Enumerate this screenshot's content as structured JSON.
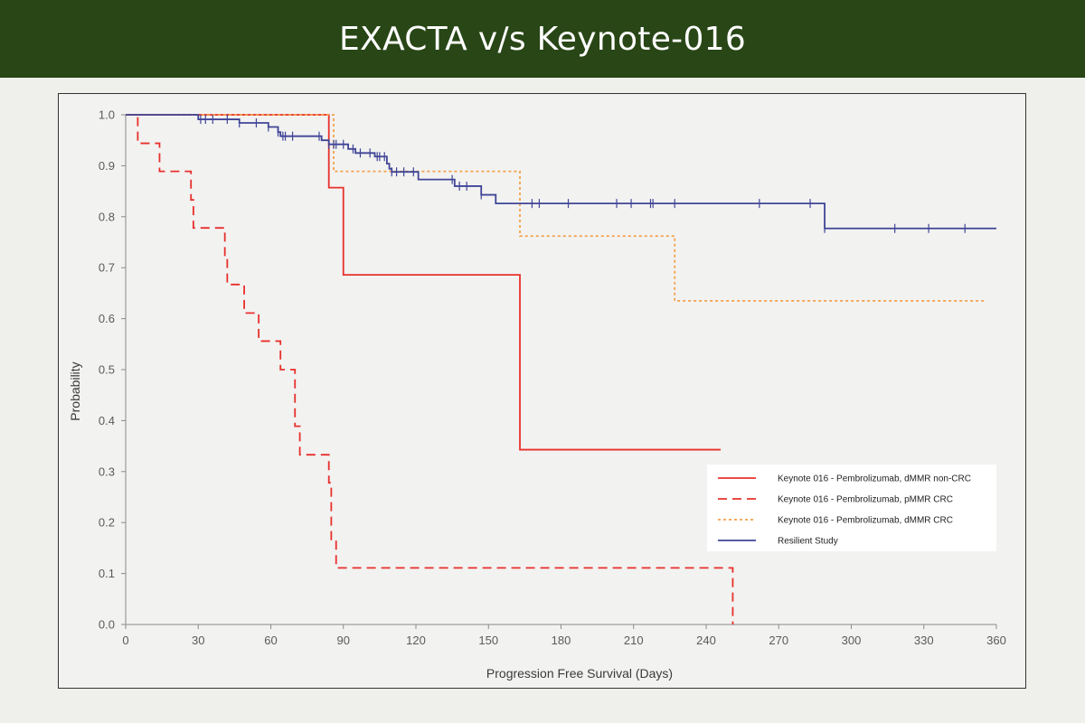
{
  "banner": {
    "title": "EXACTA v/s Keynote-016"
  },
  "colors": {
    "banner_bg": "#284616",
    "page_bg": "#eff0ec"
  },
  "chart_data": {
    "type": "line",
    "subtype": "kaplan-meier-step",
    "xlabel": "Progression Free Survival (Days)",
    "ylabel": "Probability",
    "xlim": [
      0,
      360
    ],
    "ylim": [
      0,
      1.0
    ],
    "x_ticks": [
      "0",
      "30",
      "60",
      "90",
      "120",
      "150",
      "180",
      "210",
      "240",
      "270",
      "300",
      "330",
      "360"
    ],
    "y_ticks": [
      "0.0",
      "0.1",
      "0.2",
      "0.3",
      "0.4",
      "0.5",
      "0.6",
      "0.7",
      "0.8",
      "0.9",
      "1.0"
    ],
    "grid": false,
    "legend_position": "bottom-right",
    "series": [
      {
        "name": "Keynote 016 - Pembrolizumab, dMMR non-CRC",
        "color": "#e8302b",
        "style": "solid",
        "steps": [
          [
            0,
            1.0
          ],
          [
            84,
            0.857
          ],
          [
            90,
            0.686
          ],
          [
            163,
            0.343
          ],
          [
            246,
            0.343
          ]
        ],
        "censored_x": []
      },
      {
        "name": "Keynote 016 - Pembrolizumab, pMMR CRC",
        "color": "#e8302b",
        "style": "dashed",
        "steps": [
          [
            0,
            1.0
          ],
          [
            5,
            0.944
          ],
          [
            14,
            0.889
          ],
          [
            27,
            0.833
          ],
          [
            28,
            0.778
          ],
          [
            41,
            0.722
          ],
          [
            42,
            0.667
          ],
          [
            49,
            0.611
          ],
          [
            55,
            0.556
          ],
          [
            64,
            0.5
          ],
          [
            70,
            0.389
          ],
          [
            72,
            0.333
          ],
          [
            84,
            0.278
          ],
          [
            85,
            0.167
          ],
          [
            87,
            0.111
          ],
          [
            251,
            0.0
          ]
        ],
        "censored_x": []
      },
      {
        "name": "Keynote 016 - Pembrolizumab, dMMR CRC",
        "color": "#f5a04a",
        "style": "dotted",
        "steps": [
          [
            0,
            1.0
          ],
          [
            86,
            0.889
          ],
          [
            163,
            0.762
          ],
          [
            227,
            0.635
          ],
          [
            356,
            0.635
          ]
        ],
        "censored_x": []
      },
      {
        "name": "Resilient Study",
        "color": "#3f4596",
        "style": "solid",
        "steps": [
          [
            0,
            1.0
          ],
          [
            30,
            0.991
          ],
          [
            47,
            0.984
          ],
          [
            59,
            0.976
          ],
          [
            63,
            0.966
          ],
          [
            64,
            0.958
          ],
          [
            81,
            0.95
          ],
          [
            84,
            0.942
          ],
          [
            92,
            0.933
          ],
          [
            95,
            0.925
          ],
          [
            103,
            0.918
          ],
          [
            108,
            0.904
          ],
          [
            109,
            0.894
          ],
          [
            110,
            0.888
          ],
          [
            121,
            0.873
          ],
          [
            136,
            0.86
          ],
          [
            147,
            0.843
          ],
          [
            153,
            0.826
          ],
          [
            289,
            0.777
          ],
          [
            360,
            0.777
          ]
        ],
        "censored_x": [
          31,
          33,
          36,
          42,
          47,
          54,
          59,
          63,
          65,
          66,
          69,
          80,
          84,
          86,
          87,
          90,
          94,
          97,
          101,
          104,
          105,
          107,
          110,
          112,
          115,
          119,
          135,
          138,
          141,
          147,
          168,
          171,
          183,
          203,
          209,
          217,
          218,
          227,
          262,
          283,
          289,
          318,
          332,
          347
        ]
      }
    ]
  }
}
